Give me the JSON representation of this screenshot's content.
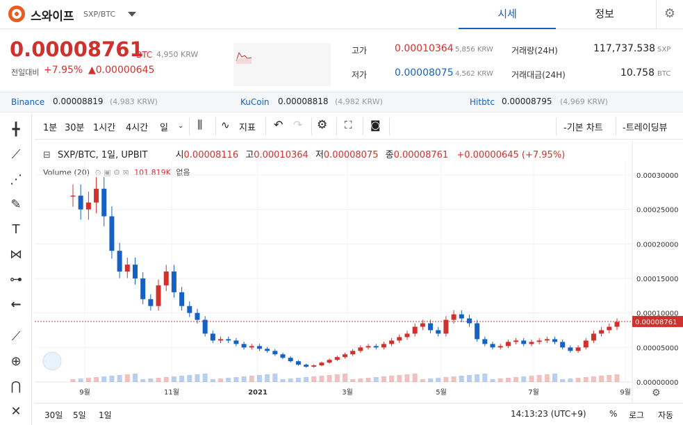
{
  "header": {
    "coin_name": "스와이프",
    "pair": "SXP/BTC",
    "tab_quote": "시세",
    "tab_info": "정보"
  },
  "price": {
    "value": "0.00008761",
    "unit": "BTC",
    "krw": "4,950",
    "krw_unit": "KRW",
    "change_label": "전일대비",
    "change_pct": "+7.95%",
    "change_amt": "▲0.00000645"
  },
  "stats": {
    "high_label": "고가",
    "high": "0.00010364",
    "high_krw": "5,856",
    "high_krw_unit": "KRW",
    "low_label": "저가",
    "low": "0.00008075",
    "low_krw": "4,562",
    "low_krw_unit": "KRW",
    "vol_label": "거래량(24H)",
    "vol": "117,737.538",
    "vol_unit": "SXP",
    "amt_label": "거래대금(24H)",
    "amt": "10.758",
    "amt_unit": "BTC"
  },
  "exchanges": [
    {
      "name": "Binance",
      "price": "0.00008819",
      "krw": "(4,983 KRW)"
    },
    {
      "name": "KuCoin",
      "price": "0.00008818",
      "krw": "(4,982 KRW)"
    },
    {
      "name": "Hitbtc",
      "price": "0.00008795",
      "krw": "(4,969 KRW)"
    }
  ],
  "toolbar": {
    "intervals": [
      "1분",
      "30분",
      "1시간",
      "4시간",
      "일"
    ],
    "indicators": "지표",
    "basic_chart": "-기본 차트",
    "trading_view": "-트레이딩뷰"
  },
  "legend": {
    "symbol": "SXP/BTC, 1일, UPBIT",
    "open_label": "시",
    "open": "0.00008116",
    "high_label": "고",
    "high": "0.00010364",
    "low_label": "저",
    "low": "0.00008075",
    "close_label": "종",
    "close": "0.00008761",
    "change": "+0.00000645 (+7.95%)",
    "volume_label": "Volume (20)",
    "volume_value": "101.819K",
    "volume_extra": "없음"
  },
  "chart_data": {
    "type": "candlestick",
    "x_ticks": [
      "9월",
      "11월",
      "2021",
      "3월",
      "5월",
      "7월",
      "9월"
    ],
    "y_ticks": [
      "0.00030000",
      "0.00025000",
      "0.00020000",
      "0.00015000",
      "0.00010000",
      "0.00005000",
      "0.00000000"
    ],
    "ylim": [
      0,
      0.00032
    ],
    "last_price_label": "0.00008761",
    "series": [
      0.00027,
      0.00025,
      0.00026,
      0.00028,
      0.00024,
      0.00019,
      0.00016,
      0.00017,
      0.00015,
      0.00012,
      0.00011,
      0.00014,
      0.00016,
      0.00013,
      0.00011,
      0.0001,
      9e-05,
      7e-05,
      6e-05,
      6.2e-05,
      6e-05,
      5.5e-05,
      5e-05,
      5.2e-05,
      4.8e-05,
      4.5e-05,
      4e-05,
      3.5e-05,
      3e-05,
      2.5e-05,
      2.2e-05,
      2.4e-05,
      2.8e-05,
      3.2e-05,
      3.6e-05,
      4e-05,
      4.5e-05,
      5e-05,
      5.2e-05,
      5e-05,
      5.5e-05,
      6e-05,
      6.5e-05,
      7e-05,
      8e-05,
      8.5e-05,
      7.5e-05,
      7e-05,
      9e-05,
      9.8e-05,
      9.2e-05,
      8.5e-05,
      6.2e-05,
      5.5e-05,
      5e-05,
      5.2e-05,
      5.8e-05,
      6e-05,
      5.5e-05,
      5.8e-05,
      6e-05,
      6.2e-05,
      5.8e-05,
      5e-05,
      4.5e-05,
      5e-05,
      6e-05,
      7e-05,
      7.5e-05,
      8e-05,
      8.7e-05
    ]
  },
  "bottom": {
    "ranges": [
      "30일",
      "5일",
      "1일"
    ],
    "time": "14:13:23 (UTC+9)",
    "pct": "%",
    "log": "로그",
    "auto": "자동"
  },
  "colors": {
    "up": "#d0312d",
    "down": "#1561c4",
    "accent": "#1561c4"
  }
}
